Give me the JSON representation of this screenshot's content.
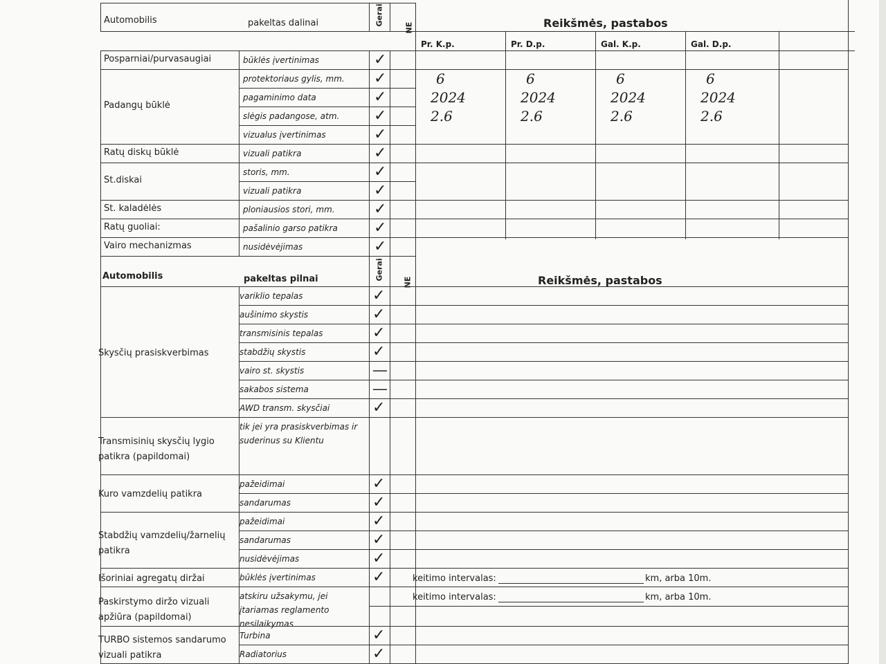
{
  "section1": {
    "title": "Automobilis",
    "subtitle": "pakeltas dalinai",
    "col_ok": "Gerai",
    "col_no": "NE",
    "remarks": "Reikšmės, pastabos",
    "wheel_cols": [
      "Pr. K.p.",
      "Pr. D.p.",
      "Gal. K.p.",
      "Gal. D.p."
    ],
    "groups": [
      {
        "label": "Posparniai/purvasaugiai",
        "items": [
          {
            "sub": "būklės įvertinimas",
            "ok": "✓"
          }
        ]
      },
      {
        "label": "Padangų būklė",
        "items": [
          {
            "sub": "protektoriaus gylis,  mm.",
            "ok": "✓",
            "values": [
              "6",
              "6",
              "6",
              "6"
            ]
          },
          {
            "sub": "pagaminimo data",
            "ok": "✓",
            "values": [
              "2024",
              "2024",
              "2024",
              "2024"
            ]
          },
          {
            "sub": "slėgis padangose, atm.",
            "ok": "✓",
            "values": [
              "2.6",
              "2.6",
              "2.6",
              "2.6"
            ]
          },
          {
            "sub": "vizualus įvertinimas",
            "ok": "✓"
          }
        ]
      },
      {
        "label": "Ratų diskų būklė",
        "items": [
          {
            "sub": "vizuali patikra",
            "ok": "✓"
          }
        ]
      },
      {
        "label": "St.diskai",
        "items": [
          {
            "sub": "storis,  mm.",
            "ok": "✓"
          },
          {
            "sub": "vizuali patikra",
            "ok": "✓"
          }
        ]
      },
      {
        "label": "St. kaladėlės",
        "items": [
          {
            "sub": "ploniausios stori,  mm.",
            "ok": "✓"
          }
        ]
      },
      {
        "label": "Ratų guoliai:",
        "items": [
          {
            "sub": "pašalinio garso patikra",
            "ok": "✓"
          }
        ]
      },
      {
        "label": "Vairo mechanizmas",
        "items": [
          {
            "sub": "nusidėvėjimas",
            "ok": "✓"
          }
        ]
      }
    ]
  },
  "section2": {
    "title": "Automobilis",
    "subtitle": "pakeltas pilnai",
    "col_ok": "Gerai",
    "col_no": "NE",
    "remarks": "Reikšmės, pastabos",
    "groups": [
      {
        "label": "Skysčių prasiskverbimas",
        "items": [
          {
            "sub": "variklio tepalas",
            "ok": "✓"
          },
          {
            "sub": "aušinimo skystis",
            "ok": "✓"
          },
          {
            "sub": "transmisinis tepalas",
            "ok": "✓"
          },
          {
            "sub": "stabdžių skystis",
            "ok": "✓"
          },
          {
            "sub": "vairo st. skystis",
            "ok": "—"
          },
          {
            "sub": "sakabos sistema",
            "ok": "—"
          },
          {
            "sub": "AWD transm. skysčiai",
            "ok": "✓"
          }
        ]
      },
      {
        "label": "Transmisinių skysčių lygio patikra (papildomai)",
        "items": [
          {
            "sub": "tik jei yra prasiskverbimas ir suderinus su Klientu",
            "ok": ""
          }
        ]
      },
      {
        "label": "Kuro vamzdelių patikra",
        "items": [
          {
            "sub": "pažeidimai",
            "ok": "✓"
          },
          {
            "sub": "sandarumas",
            "ok": "✓"
          }
        ]
      },
      {
        "label": "Stabdžių vamzdelių/žarnelių patikra",
        "items": [
          {
            "sub": "pažeidimai",
            "ok": "✓"
          },
          {
            "sub": "sandarumas",
            "ok": "✓"
          },
          {
            "sub": "nusidėvėjimas",
            "ok": "✓"
          }
        ]
      },
      {
        "label": "Išoriniai agregatų diržai",
        "items": [
          {
            "sub": "būklės įvertinimas",
            "ok": "✓",
            "note": "keitimo intervalas:",
            "note_end": "km, arba 10m."
          }
        ]
      },
      {
        "label": "Paskirstymo diržo vizuali apžiūra (papildomai)",
        "items": [
          {
            "sub": "atskiru užsakymu, jei įtariamas reglamento nesilaikymas",
            "ok": "",
            "note": "keitimo intervalas:",
            "note_end": "km, arba 10m."
          }
        ]
      },
      {
        "label": "TURBO sistemos sandarumo vizuali patikra",
        "items": [
          {
            "sub": "Turbina",
            "ok": "✓"
          },
          {
            "sub": "Radiatorius",
            "ok": "✓"
          }
        ]
      }
    ]
  }
}
